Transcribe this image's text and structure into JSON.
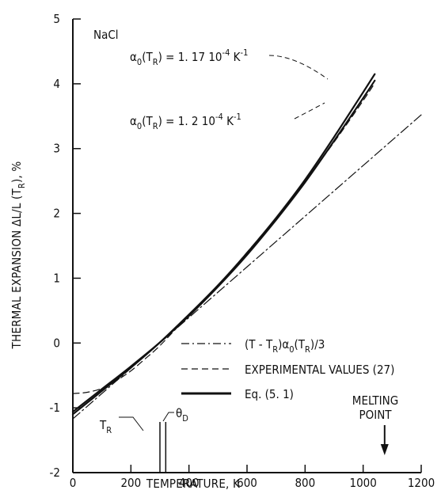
{
  "chart_data": {
    "type": "line",
    "title": "NaCl",
    "xlabel": "TEMPERATURE, K",
    "ylabel_parts": [
      "THERMAL EXPANSION  ΔL/L (T",
      "R",
      "), %"
    ],
    "xlim": [
      0,
      1200
    ],
    "ylim": [
      -2,
      5
    ],
    "x_ticks": [
      0,
      200,
      400,
      600,
      800,
      1000,
      1200
    ],
    "x_tick_labels": [
      "0",
      "200",
      "400",
      "600",
      "800",
      "1000",
      "1200"
    ],
    "y_ticks": [
      -2,
      -1,
      0,
      1,
      2,
      3,
      4,
      5
    ],
    "y_tick_labels": [
      "-2",
      "-1",
      "0",
      "1",
      "2",
      "3",
      "4",
      "5"
    ],
    "grid": false,
    "legend_position": "lower-right",
    "series": [
      {
        "name": "(T - T_R)α_0(T_R)/3",
        "style": "dashdot",
        "x": [
          0,
          1200
        ],
        "y": [
          -1.17,
          3.52
        ]
      },
      {
        "name": "EXPERIMENTAL VALUES (27)",
        "style": "dashed",
        "x": [
          0,
          50,
          100,
          150,
          200,
          250,
          300,
          400,
          500,
          600,
          700,
          800,
          900,
          1000,
          1040
        ],
        "y": [
          -0.78,
          -0.76,
          -0.7,
          -0.58,
          -0.43,
          -0.24,
          -0.04,
          0.43,
          0.88,
          1.4,
          1.93,
          2.5,
          3.1,
          3.74,
          4.01
        ]
      },
      {
        "name": "Eq. (5.1)",
        "style": "solid",
        "x": [
          0,
          100,
          200,
          300,
          400,
          500,
          600,
          700,
          800,
          900,
          1000,
          1040
        ],
        "y": [
          -1.1,
          -0.74,
          -0.38,
          0.01,
          0.44,
          0.89,
          1.39,
          1.93,
          2.52,
          3.18,
          3.87,
          4.15
        ]
      },
      {
        "name": "α_0(T_R) = 1.2 10^-4 K^-1 curve",
        "style": "solid",
        "x": [
          0,
          100,
          200,
          300,
          400,
          500,
          600,
          700,
          800,
          900,
          1000,
          1040
        ],
        "y": [
          -1.06,
          -0.71,
          -0.36,
          0.01,
          0.42,
          0.87,
          1.36,
          1.9,
          2.48,
          3.12,
          3.78,
          4.05
        ]
      }
    ],
    "annotations": {
      "alpha1": {
        "pre": "α",
        "sub1": "0",
        "mid": "(T",
        "sub2": "R",
        "post": ") = 1. 17 10",
        "sup1": "-4",
        "tail": " K",
        "sup2": "-1"
      },
      "alpha2": {
        "pre": "α",
        "sub1": "0",
        "mid": "(T",
        "sub2": "R",
        "post": ") = 1. 2 10",
        "sup1": "-4",
        "tail": " K",
        "sup2": "-1"
      },
      "tr": {
        "main": "T",
        "sub": "R"
      },
      "theta": {
        "main": "θ",
        "sub": "D"
      },
      "melting_line1": "MELTING",
      "melting_line2": "POINT",
      "legend_line1": {
        "a": "(T - T",
        "sub": "R",
        "b": ")α",
        "sub2": "0",
        "c": "(T",
        "sub3": "R",
        "d": ")/3"
      },
      "legend_line2": "EXPERIMENTAL VALUES (27)",
      "legend_line3": "Eq.  (5. 1)"
    },
    "markers": {
      "t_r": 300,
      "theta_d": 320,
      "melting_point": 1074
    }
  }
}
